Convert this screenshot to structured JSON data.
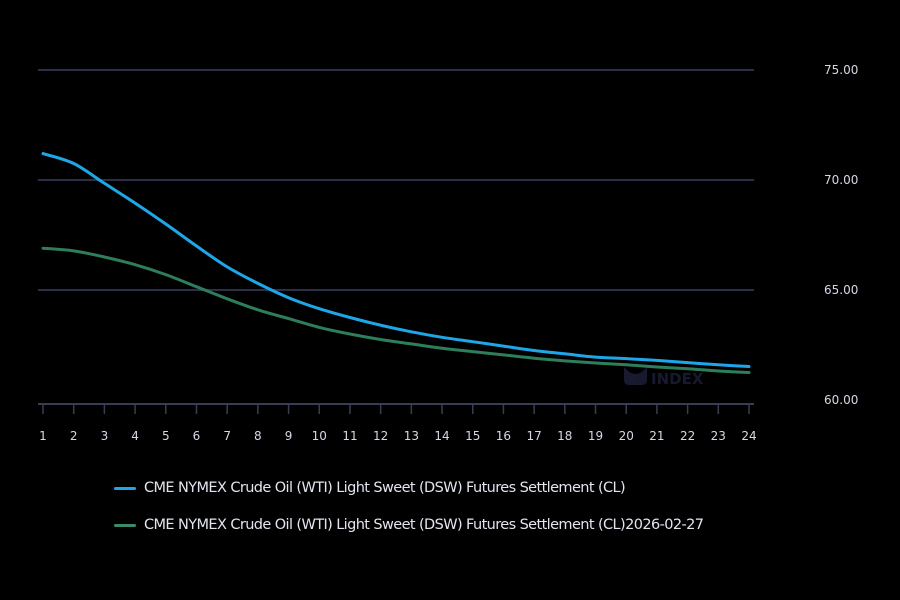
{
  "chart_data": {
    "type": "line",
    "title": "",
    "xlabel": "",
    "ylabel": "",
    "x": [
      1,
      2,
      3,
      4,
      5,
      6,
      7,
      8,
      9,
      10,
      11,
      12,
      13,
      14,
      15,
      16,
      17,
      18,
      19,
      20,
      21,
      22,
      23,
      24
    ],
    "y_ticks": [
      "60.00",
      "65.00",
      "70.00",
      "75.00"
    ],
    "ylim": [
      60,
      75
    ],
    "grid": true,
    "y_axis_position": "right",
    "legend_position": "bottom",
    "series": [
      {
        "name": "CME NYMEX Crude Oil (WTI) Light Sweet (DSW) Futures Settlement (CL)",
        "color": "#1ea7e8",
        "values": [
          71.2,
          70.75,
          69.85,
          68.95,
          68.0,
          67.0,
          66.05,
          65.3,
          64.65,
          64.15,
          63.75,
          63.4,
          63.1,
          62.85,
          62.65,
          62.45,
          62.25,
          62.1,
          61.95,
          61.88,
          61.8,
          61.7,
          61.6,
          61.52
        ]
      },
      {
        "name": "CME NYMEX Crude Oil (WTI) Light Sweet (DSW) Futures Settlement (CL)2026-02-27",
        "color": "#2e7d5b",
        "values": [
          66.9,
          66.78,
          66.5,
          66.15,
          65.7,
          65.15,
          64.6,
          64.1,
          63.7,
          63.3,
          63.0,
          62.75,
          62.55,
          62.35,
          62.2,
          62.05,
          61.9,
          61.78,
          61.68,
          61.6,
          61.5,
          61.42,
          61.32,
          61.25
        ]
      }
    ],
    "watermark": "INDEX",
    "colors": {
      "background": "#000000",
      "gridline": "#2c2f4a",
      "axis": "#3a3d52",
      "tick_text": "#d6d9e4"
    }
  }
}
